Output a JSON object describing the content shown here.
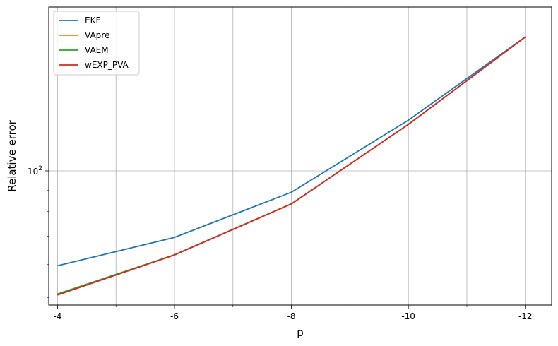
{
  "chart_data": {
    "type": "line",
    "title": "",
    "xlabel": "p",
    "ylabel": "Relative error",
    "yscale": "log",
    "grid": true,
    "legend_position": "top-left",
    "x": [
      -4,
      -6,
      -8,
      -10,
      -12
    ],
    "x_major_tick_labels": [
      "-4",
      "-6",
      "-8",
      "-10",
      "-12"
    ],
    "x_minor_ticks": [
      -5,
      -7,
      -9,
      -11
    ],
    "y_major_tick_label": {
      "base": "10",
      "exponent": "2",
      "value": 100
    },
    "y_minor_ticks": [
      50,
      60,
      70,
      80,
      90,
      200
    ],
    "xlim": [
      -3.85,
      -12.45
    ],
    "ylim": [
      48,
      245
    ],
    "series": [
      {
        "name": "EKF",
        "color": "#1f77b4",
        "values": [
          59.5,
          69.5,
          89,
          132,
          208
        ]
      },
      {
        "name": "VApre",
        "color": "#ff7f0e",
        "values": [
          50.8,
          63.2,
          83.5,
          129,
          208
        ]
      },
      {
        "name": "VAEM",
        "color": "#2ca02c",
        "values": [
          51,
          63.2,
          83.5,
          129,
          208
        ]
      },
      {
        "name": "wEXP_PVA",
        "color": "#d62728",
        "values": [
          50.7,
          63.1,
          83.5,
          129,
          208
        ]
      }
    ]
  }
}
